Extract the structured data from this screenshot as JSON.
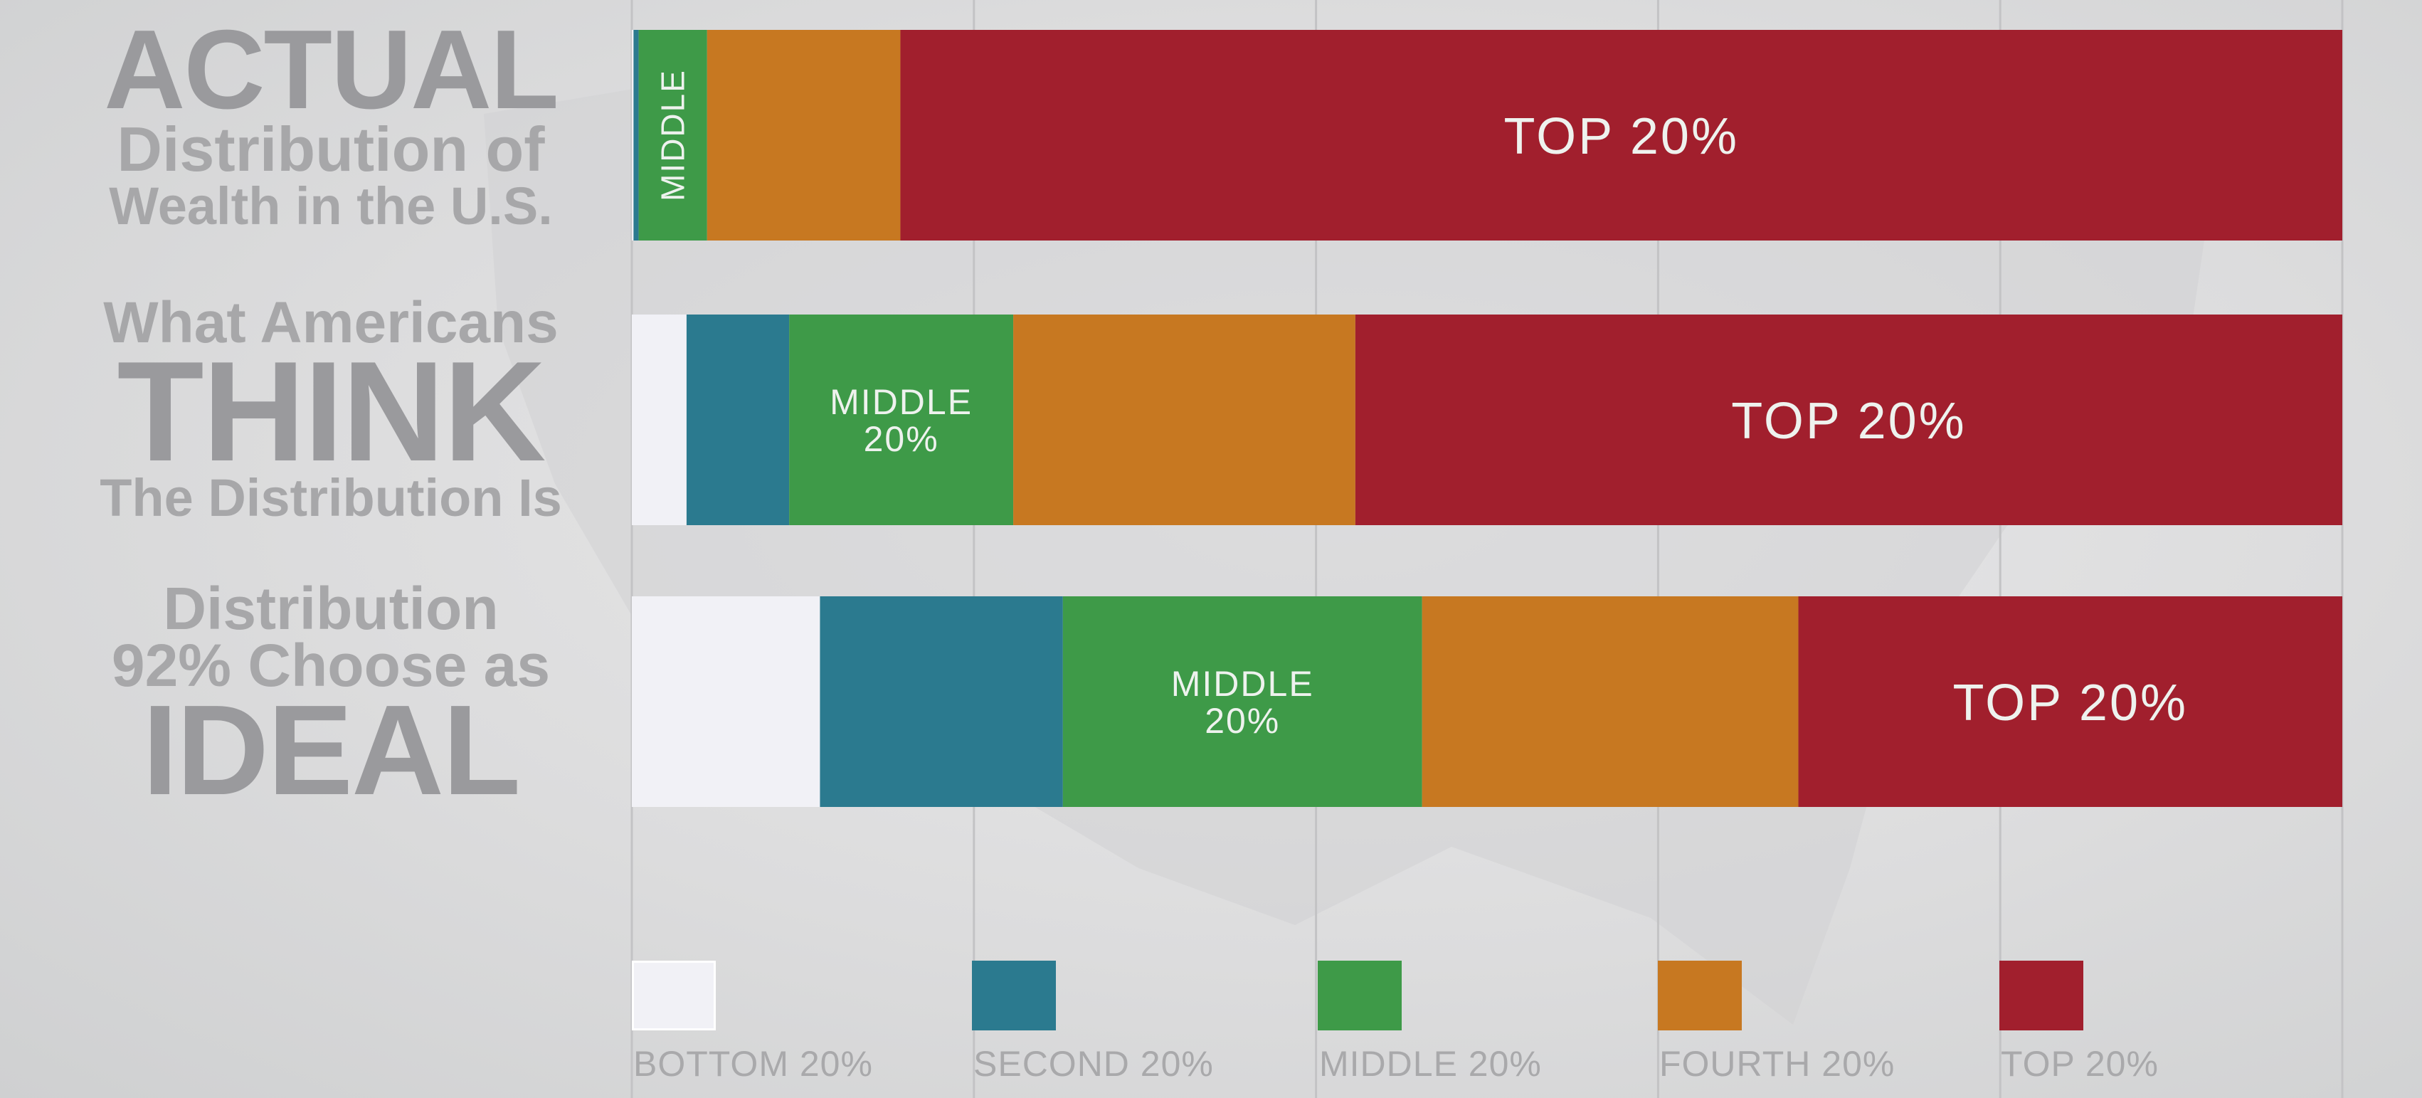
{
  "row_labels": [
    {
      "lines": [
        "ACTUAL",
        "Distribution of",
        "Wealth in the U.S."
      ],
      "emphasis_index": 0
    },
    {
      "lines": [
        "What Americans",
        "THINK",
        "The Distribution Is"
      ],
      "emphasis_index": 1
    },
    {
      "lines": [
        "Distribution",
        "92% Choose as",
        "IDEAL"
      ],
      "emphasis_index": 2
    }
  ],
  "colors": {
    "bottom": "#f1f1f6",
    "second": "#2b7a8f",
    "middle": "#3e9a48",
    "fourth": "#c77821",
    "top": "#a11f2d",
    "gridline": "#c3c3c5",
    "label_text": "#eef2ee"
  },
  "chart_data": {
    "type": "bar",
    "orientation": "horizontal",
    "stacked": true,
    "xlim": [
      0,
      100
    ],
    "grid": true,
    "legend_position": "bottom",
    "categories": [
      "ACTUAL Distribution of Wealth in the U.S.",
      "What Americans THINK The Distribution Is",
      "Distribution 92% Choose as IDEAL"
    ],
    "series": [
      {
        "name": "BOTTOM 20%",
        "color_key": "bottom",
        "values": [
          0.1,
          3.2,
          11.0
        ]
      },
      {
        "name": "SECOND 20%",
        "color_key": "second",
        "values": [
          0.3,
          6.0,
          14.2
        ]
      },
      {
        "name": "MIDDLE 20%",
        "color_key": "middle",
        "values": [
          4.0,
          13.1,
          21.0
        ]
      },
      {
        "name": "FOURTH 20%",
        "color_key": "fourth",
        "values": [
          11.3,
          20.0,
          22.0
        ]
      },
      {
        "name": "TOP 20%",
        "color_key": "top",
        "values": [
          84.3,
          57.7,
          31.8
        ]
      }
    ],
    "bar_labels": [
      {
        "bar": 0,
        "series": 2,
        "lines": [
          "MIDDLE"
        ],
        "rotated": true
      },
      {
        "bar": 0,
        "series": 4,
        "lines": [
          "TOP 20%"
        ]
      },
      {
        "bar": 1,
        "series": 2,
        "lines": [
          "MIDDLE",
          "20%"
        ]
      },
      {
        "bar": 1,
        "series": 4,
        "lines": [
          "TOP 20%"
        ]
      },
      {
        "bar": 2,
        "series": 2,
        "lines": [
          "MIDDLE",
          "20%"
        ]
      },
      {
        "bar": 2,
        "series": 4,
        "lines": [
          "TOP 20%"
        ]
      }
    ]
  }
}
